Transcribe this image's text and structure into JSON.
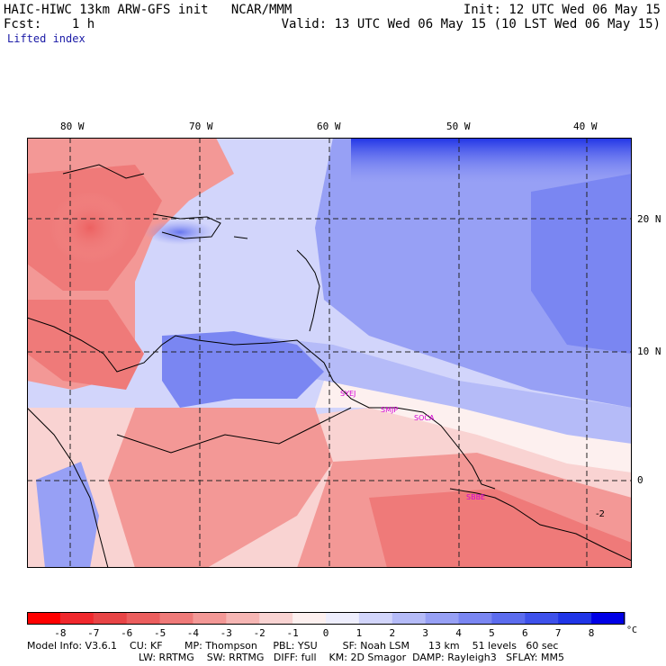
{
  "header": {
    "left_line1": "HAIC-HIWC 13km ARW-GFS init   NCAR/MMM",
    "left_line2": "Fcst:    1 h",
    "right_line1": "Init: 12 UTC Wed 06 May 15",
    "right_line2": "Valid: 13 UTC Wed 06 May 15 (10 LST Wed 06 May 15)",
    "field": "Lifted index"
  },
  "longitudes": [
    "80 W",
    "70 W",
    "60 W",
    "50 W",
    "40 W"
  ],
  "latitudes": [
    "20 N",
    "10 N",
    "0"
  ],
  "stations": [
    "SYEJ",
    "SMJP",
    "SOCA",
    "SBBE"
  ],
  "colorbar": {
    "ticks": [
      "-8",
      "-7",
      "-6",
      "-5",
      "-4",
      "-3",
      "-2",
      "-1",
      "0",
      "1",
      "2",
      "3",
      "4",
      "5",
      "6",
      "7",
      "8"
    ],
    "unit": "°C",
    "colors": [
      "#ff0000",
      "#f0282d",
      "#e84446",
      "#ec5e5e",
      "#ef7a79",
      "#f39896",
      "#f6b6b4",
      "#f9d3d2",
      "#fdf0ef",
      "#eeeefd",
      "#d2d5fb",
      "#b5bbf8",
      "#97a0f5",
      "#7a86f2",
      "#5c6cee",
      "#3e51eb",
      "#2035e7",
      "#0000e6"
    ]
  },
  "model_info": {
    "line1": "Model Info: V3.6.1    CU: KF       MP: Thompson     PBL: YSU        SF: Noah LSM      13 km    51 levels   60 sec",
    "line2": "LW: RRTMG    SW: RRTMG   DIFF: full    KM: 2D Smagor  DAMP: Rayleigh3   SFLAY: MM5"
  },
  "contour_label": "-2"
}
